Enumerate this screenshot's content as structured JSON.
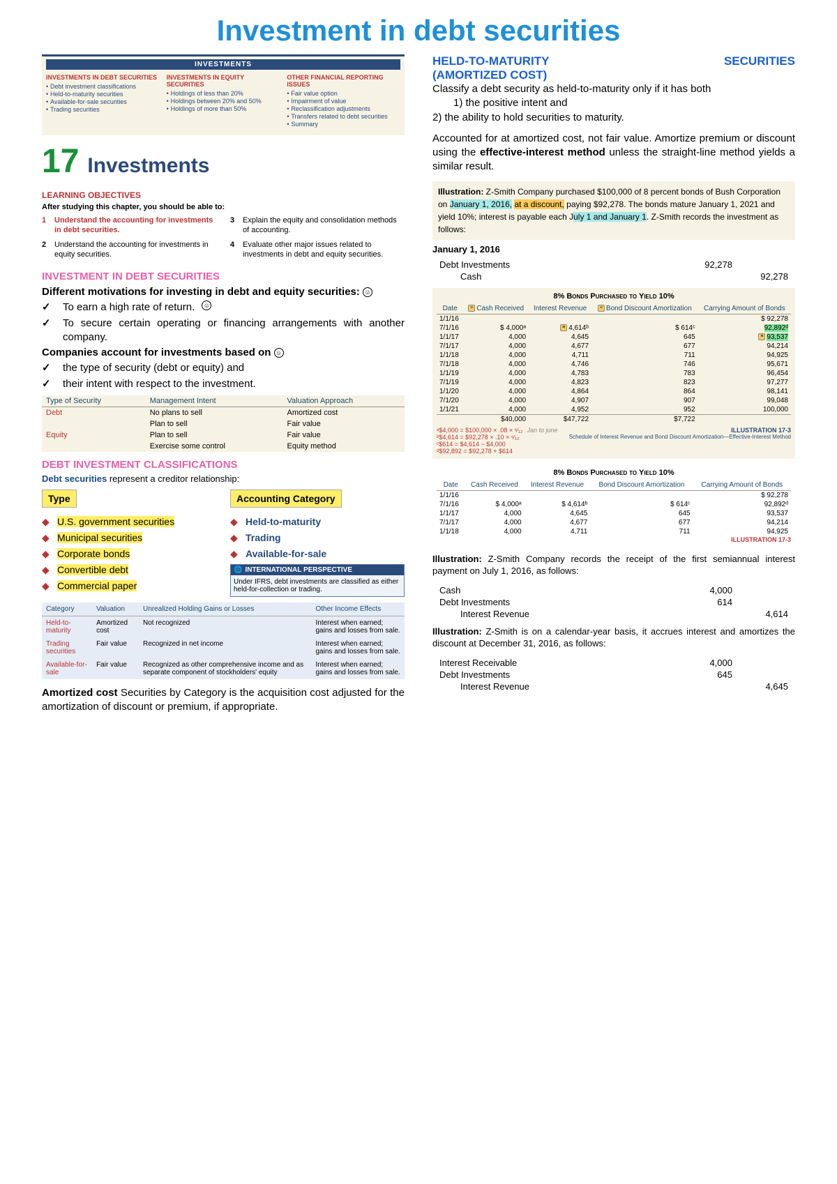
{
  "title": "Investment in debt securities",
  "inv_header_bar": "INVESTMENTS",
  "inv_header_cols": [
    {
      "h": "INVESTMENTS IN DEBT SECURITIES",
      "items": [
        "Debt investment classifications",
        "Held-to-maturity securities",
        "Available-for-sale securities",
        "Trading securities"
      ]
    },
    {
      "h": "INVESTMENTS IN EQUITY SECURITIES",
      "items": [
        "Holdings of less than 20%",
        "Holdings between 20% and 50%",
        "Holdings of more than 50%"
      ]
    },
    {
      "h": "OTHER FINANCIAL REPORTING ISSUES",
      "items": [
        "Fair value option",
        "Impairment of value",
        "Reclassification adjustments",
        "Transfers related to debt securities",
        "Summary"
      ]
    }
  ],
  "chapter_num": "17",
  "chapter_word": "Investments",
  "lo_header": "LEARNING OBJECTIVES",
  "lo_sub": "After studying this chapter, you should be able to:",
  "lo": {
    "l": [
      {
        "n": "1",
        "t": "Understand the accounting for investments in debt securities.",
        "red": true
      },
      {
        "n": "2",
        "t": "Understand the accounting for investments in equity securities."
      }
    ],
    "r": [
      {
        "n": "3",
        "t": "Explain the equity and consolidation methods of accounting."
      },
      {
        "n": "4",
        "t": "Evaluate other major issues related to investments in debt and equity securities."
      }
    ]
  },
  "sect1_h": "INVESTMENT IN DEBT SECURITIES",
  "sect1_intro": "Different motivations for investing in debt and equity securities:",
  "sect1_checks": [
    "To earn a high rate of return.",
    "To secure certain operating or financing arrangements with another company."
  ],
  "sect1_intro2": "Companies account for investments based on",
  "sect1_checks2": [
    "the type of security (debt or equity) and",
    "their intent with respect to the investment."
  ],
  "sec_table": {
    "head": [
      "Type of Security",
      "Management Intent",
      "Valuation Approach"
    ],
    "rows": [
      [
        "Debt",
        "No plans to sell",
        "Amortized cost"
      ],
      [
        "",
        "Plan to sell",
        "Fair value"
      ],
      [
        "Equity",
        "Plan to sell",
        "Fair value"
      ],
      [
        "",
        "Exercise some control",
        "Equity method"
      ]
    ]
  },
  "sect2_h": "DEBT INVESTMENT CLASSIFICATIONS",
  "sect2_intro": "Debt securities represent a creditor relationship:",
  "type_header": "Type",
  "cat_header": "Accounting Category",
  "type_list": [
    "U.S. government securities",
    "Municipal securities",
    "Corporate bonds",
    "Convertible debt",
    "Commercial paper"
  ],
  "cat_list": [
    "Held-to-maturity",
    "Trading",
    "Available-for-sale"
  ],
  "intl_title": "INTERNATIONAL PERSPECTIVE",
  "intl_body": "Under IFRS, debt investments are classified as either held-for-collection or trading.",
  "blue_table": {
    "head": [
      "Category",
      "Valuation",
      "Unrealized Holding Gains or Losses",
      "Other Income Effects"
    ],
    "rows": [
      [
        "Held-to-maturity",
        "Amortized cost",
        "Not recognized",
        "Interest when earned; gains and losses from sale."
      ],
      [
        "Trading securities",
        "Fair value",
        "Recognized in net income",
        "Interest when earned; gains and losses from sale."
      ],
      [
        "Available-for-sale",
        "Fair value",
        "Recognized as other comprehensive income and as separate component of stockholders' equity",
        "Interest when earned; gains and losses from sale."
      ]
    ]
  },
  "amort_cost_p": [
    "Amortized cost",
    " Securities by Category is the acquisition cost adjusted for the amortization of discount or premium, if appropriate."
  ],
  "htm": {
    "t1": "HELD-TO-MATURITY",
    "t2": "SECURITIES",
    "t3": "(AMORTIZED COST)",
    "p1": "Classify a debt security as held-to-maturity only if it has both",
    "p1a": "1) the positive intent and",
    "p1b": "2) the ability to hold securities to maturity.",
    "p2a": "Accounted for at amortized cost, not fair value. Amortize premium or discount using the ",
    "p2b": "effective-interest method",
    "p2c": " unless the straight-line method yields a similar result."
  },
  "illus1": {
    "lead": "Illustration:",
    "a": " Z-Smith Company purchased $100,000 of 8 percent bonds of Bush Corporation on ",
    "hl1": "January 1, 2016,",
    "mid": " ",
    "hl2": "at a discount,",
    "b": " paying $92,278. The bonds mature January 1, 2021 and yield 10%; interest is payable each J",
    "hl3": "uly 1 and January 1",
    "c": ".  Z-Smith records the investment as follows:"
  },
  "je1_title": "January 1, 2016",
  "je1": [
    {
      "acct": "Debt Investments",
      "d": "92,278",
      "c": ""
    },
    {
      "acct": "Cash",
      "d": "",
      "c": "92,278",
      "ind": true
    }
  ],
  "amort_title": "8% Bonds Purchased to Yield 10%",
  "amort_head": [
    "Date",
    "Cash Received",
    "Interest Revenue",
    "Bond Discount Amortization",
    "Carrying Amount of Bonds"
  ],
  "amort_rows": [
    [
      "1/1/16",
      "",
      "",
      "",
      "$ 92,278"
    ],
    [
      "7/1/16",
      "$ 4,000ᵃ",
      "4,614ᵇ",
      "$   614ᶜ",
      "92,892ᵈ"
    ],
    [
      "1/1/17",
      "4,000",
      "4,645",
      "645",
      "93,537"
    ],
    [
      "7/1/17",
      "4,000",
      "4,677",
      "677",
      "94,214"
    ],
    [
      "1/1/18",
      "4,000",
      "4,711",
      "711",
      "94,925"
    ],
    [
      "7/1/18",
      "4,000",
      "4,746",
      "746",
      "95,671"
    ],
    [
      "1/1/19",
      "4,000",
      "4,783",
      "783",
      "96,454"
    ],
    [
      "7/1/19",
      "4,000",
      "4,823",
      "823",
      "97,277"
    ],
    [
      "1/1/20",
      "4,000",
      "4,864",
      "864",
      "98,141"
    ],
    [
      "7/1/20",
      "4,000",
      "4,907",
      "907",
      "99,048"
    ],
    [
      "1/1/21",
      "4,000",
      "4,952",
      "952",
      "100,000"
    ]
  ],
  "amort_totals": [
    "",
    "$40,000",
    "$47,722",
    "$7,722",
    ""
  ],
  "amort_notes_l": [
    "ᵃ$4,000 = $100,000 × .08 × ⁶⁄₁₂",
    "ᵇ$4,614 = $92,278 × .10 × ⁶⁄₁₂",
    "ᶜ$614 = $4,614 − $4,000",
    "ᵈ$92,892 = $92,278 + $614"
  ],
  "amort_notes_hand": "Jan to june",
  "amort_notes_r": [
    "ILLUSTRATION 17-3",
    "Schedule of Interest Revenue and Bond Discount Amortization—Effective-Interest Method"
  ],
  "amort2_rows": [
    [
      "1/1/16",
      "",
      "",
      "",
      "$ 92,278"
    ],
    [
      "7/1/16",
      "$ 4,000ᵃ",
      "$ 4,614ᵇ",
      "$   614ᶜ",
      "92,892ᵈ"
    ],
    [
      "1/1/17",
      "4,000",
      "4,645",
      "645",
      "93,537"
    ],
    [
      "7/1/17",
      "4,000",
      "4,677",
      "677",
      "94,214"
    ],
    [
      "1/1/18",
      "4,000",
      "4,711",
      "711",
      "94,925"
    ]
  ],
  "illus2": {
    "lead": "Illustration:",
    "body": " Z-Smith Company records the receipt of the first semiannual interest payment on July 1, 2016, as follows:"
  },
  "je2": [
    {
      "acct": "Cash",
      "d": "4,000",
      "c": ""
    },
    {
      "acct": "Debt Investments",
      "d": "614",
      "c": ""
    },
    {
      "acct": "Interest Revenue",
      "d": "",
      "c": "4,614",
      "ind": true
    }
  ],
  "illus3": {
    "lead": "Illustration:",
    "body": " Z-Smith is on a calendar-year basis, it accrues interest and amortizes the discount at December 31, 2016, as follows:"
  },
  "je3": [
    {
      "acct": "Interest Receivable",
      "d": "4,000",
      "c": ""
    },
    {
      "acct": "Debt Investments",
      "d": "645",
      "c": ""
    },
    {
      "acct": "Interest Revenue",
      "d": "",
      "c": "4,645",
      "ind": true
    }
  ],
  "ill173": "ILLUSTRATION 17-3"
}
